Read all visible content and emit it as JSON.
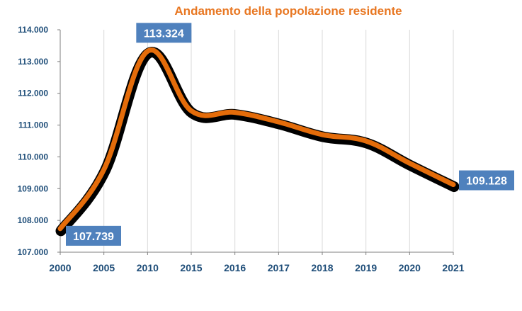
{
  "chart_data": {
    "type": "line",
    "title": "Andamento della popolazione residente",
    "xlabel": "",
    "ylabel": "",
    "categories": [
      "2000",
      "2005",
      "2010",
      "2015",
      "2016",
      "2017",
      "2018",
      "2019",
      "2020",
      "2021"
    ],
    "series": [
      {
        "values": [
          107739,
          109600,
          113324,
          111450,
          111400,
          111100,
          110700,
          110500,
          109800,
          109128
        ]
      }
    ],
    "ylim": [
      107000,
      114000
    ],
    "yticks": [
      "107.000",
      "108.000",
      "109.000",
      "110.000",
      "111.000",
      "112.000",
      "113.000",
      "114.000"
    ],
    "data_labels": [
      {
        "index": 0,
        "text": "107.739"
      },
      {
        "index": 2,
        "text": "113.324"
      },
      {
        "index": 9,
        "text": "109.128"
      }
    ],
    "grid": "vertical",
    "legend": "none",
    "colors": {
      "title": "#e87722",
      "line": "#e46c0a",
      "line_outline": "#000000",
      "axis_text": "#1f4e79",
      "label_box": "#4f81bd",
      "grid": "#d9d9d9"
    }
  }
}
